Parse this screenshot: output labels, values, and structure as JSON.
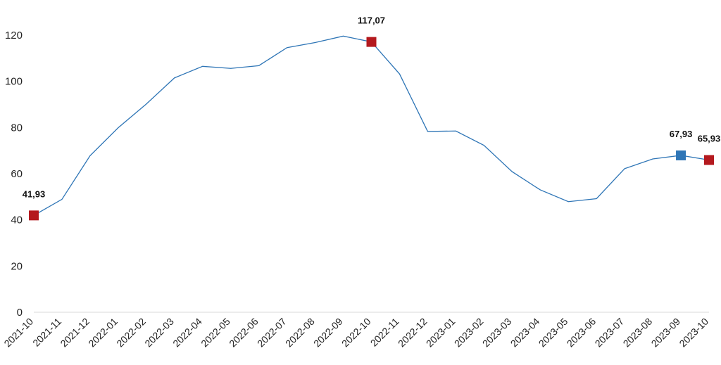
{
  "chart_data": {
    "type": "line",
    "title": "",
    "xlabel": "",
    "ylabel": "",
    "ylim": [
      0,
      120
    ],
    "yticks": [
      0,
      20,
      40,
      60,
      80,
      100,
      120
    ],
    "grid": false,
    "legend": "none",
    "categories": [
      "2021-10",
      "2021-11",
      "2021-12",
      "2022-01",
      "2022-02",
      "2022-03",
      "2022-04",
      "2022-05",
      "2022-06",
      "2022-07",
      "2022-08",
      "2022-09",
      "2022-10",
      "2022-11",
      "2022-12",
      "2023-01",
      "2023-02",
      "2023-03",
      "2023-04",
      "2023-05",
      "2023-06",
      "2023-07",
      "2023-08",
      "2023-09",
      "2023-10"
    ],
    "series": [
      {
        "values": [
          41.93,
          48.9,
          67.8,
          79.9,
          90.2,
          101.5,
          106.5,
          105.6,
          106.8,
          114.6,
          116.8,
          119.6,
          117.07,
          103.2,
          78.3,
          78.5,
          72.3,
          60.9,
          53.0,
          47.9,
          49.2,
          62.2,
          66.4,
          67.93,
          65.93
        ],
        "color": "#2e75b6"
      }
    ],
    "markers": [
      {
        "index": 0,
        "label": "41,93",
        "color": "#b4191e"
      },
      {
        "index": 12,
        "label": "117,07",
        "color": "#b4191e"
      },
      {
        "index": 23,
        "label": "67,93",
        "color": "#2e75b6"
      },
      {
        "index": 24,
        "label": "65,93",
        "color": "#b4191e"
      }
    ]
  }
}
